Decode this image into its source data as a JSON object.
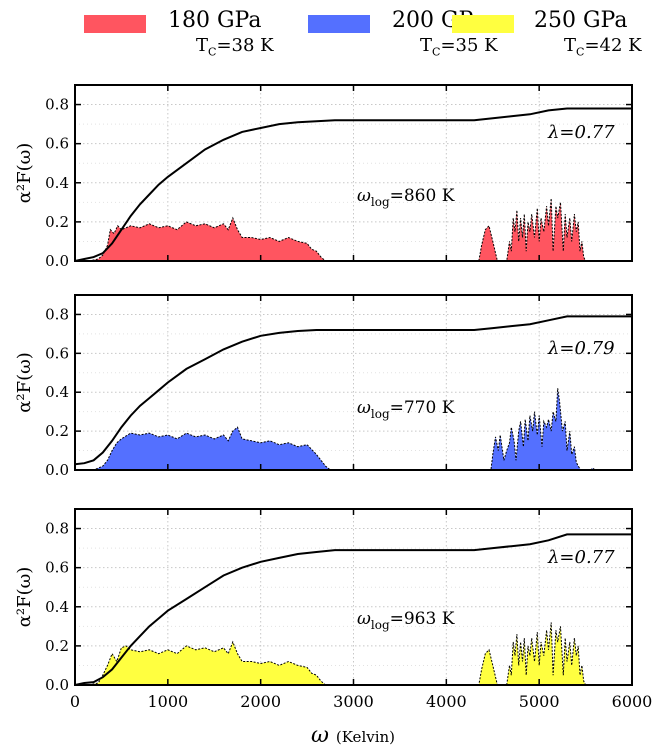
{
  "legend": [
    {
      "label": "180 GPa",
      "tc": "T",
      "tc_sub": "C",
      "tc_val": "=38 K",
      "color": "#ff5560"
    },
    {
      "label": "200 GPa",
      "tc": "T",
      "tc_sub": "C",
      "tc_val": "=35 K",
      "color": "#5470ff"
    },
    {
      "label": "250 GPa",
      "tc": "T",
      "tc_sub": "C",
      "tc_val": "=42 K",
      "color": "#ffff40"
    }
  ],
  "chart_data": [
    {
      "type": "area",
      "pressure": "180 GPa",
      "color": "#ff5560",
      "ylabel": "α²F(ω)",
      "xlim": [
        0,
        6000
      ],
      "ylim": [
        0,
        0.9
      ],
      "xticks": [
        0,
        1000,
        2000,
        3000,
        4000,
        5000,
        6000
      ],
      "yticks": [
        0.0,
        0.2,
        0.4,
        0.6,
        0.8
      ],
      "grid": true,
      "annotation_lambda": "λ=0.77",
      "annotation_omega": {
        "prefix": "ω",
        "sub": "log",
        "value": "=860 K"
      },
      "series": [
        {
          "name": "α²F(ω)",
          "x": [
            0,
            150,
            250,
            300,
            350,
            380,
            420,
            460,
            500,
            600,
            700,
            800,
            900,
            1000,
            1100,
            1200,
            1300,
            1400,
            1500,
            1600,
            1650,
            1700,
            1750,
            1800,
            1900,
            2000,
            2100,
            2200,
            2300,
            2400,
            2500,
            2550,
            2600,
            2650,
            2700,
            4350,
            4380,
            4420,
            4460,
            4500,
            4550,
            4650,
            4680,
            4700,
            4720,
            4740,
            4760,
            4780,
            4800,
            4820,
            4840,
            4860,
            4880,
            4900,
            4920,
            4950,
            4980,
            5000,
            5020,
            5050,
            5080,
            5100,
            5130,
            5150,
            5180,
            5200,
            5230,
            5260,
            5280,
            5300,
            5330,
            5350,
            5380,
            5400,
            5420,
            5440,
            5460,
            5480,
            5500,
            6000
          ],
          "y": [
            0,
            0,
            0.01,
            0.03,
            0.08,
            0.16,
            0.14,
            0.18,
            0.16,
            0.18,
            0.17,
            0.19,
            0.17,
            0.18,
            0.16,
            0.2,
            0.18,
            0.19,
            0.17,
            0.19,
            0.16,
            0.22,
            0.16,
            0.12,
            0.12,
            0.11,
            0.12,
            0.1,
            0.12,
            0.1,
            0.09,
            0.06,
            0.05,
            0.02,
            0,
            0,
            0.08,
            0.16,
            0.18,
            0.1,
            0,
            0,
            0.1,
            0.05,
            0.22,
            0.15,
            0.26,
            0.1,
            0.22,
            0.12,
            0.24,
            0.05,
            0.2,
            0.15,
            0.24,
            0.12,
            0.27,
            0.1,
            0.22,
            0.15,
            0.28,
            0.18,
            0.32,
            0.05,
            0.28,
            0.22,
            0.3,
            0.05,
            0.24,
            0.12,
            0.22,
            0.1,
            0.24,
            0.15,
            0.2,
            0.05,
            0.1,
            0.02,
            0,
            0
          ]
        },
        {
          "name": "λ",
          "x": [
            0,
            100,
            200,
            300,
            400,
            500,
            600,
            700,
            800,
            900,
            1000,
            1200,
            1400,
            1600,
            1800,
            2000,
            2200,
            2400,
            2600,
            2800,
            3000,
            3500,
            4000,
            4300,
            4500,
            4700,
            4900,
            5100,
            5300,
            5400,
            6000
          ],
          "y": [
            0,
            0.01,
            0.02,
            0.04,
            0.09,
            0.16,
            0.23,
            0.29,
            0.34,
            0.39,
            0.43,
            0.5,
            0.57,
            0.62,
            0.66,
            0.68,
            0.7,
            0.71,
            0.715,
            0.72,
            0.72,
            0.72,
            0.72,
            0.72,
            0.73,
            0.74,
            0.75,
            0.77,
            0.78,
            0.78,
            0.78
          ]
        }
      ]
    },
    {
      "type": "area",
      "pressure": "200 GPa",
      "color": "#5470ff",
      "ylabel": "α²F(ω)",
      "xlim": [
        0,
        6000
      ],
      "ylim": [
        0,
        0.9
      ],
      "xticks": [
        0,
        1000,
        2000,
        3000,
        4000,
        5000,
        6000
      ],
      "yticks": [
        0.0,
        0.2,
        0.4,
        0.6,
        0.8
      ],
      "grid": true,
      "annotation_lambda": "λ=0.79",
      "annotation_omega": {
        "prefix": "ω",
        "sub": "log",
        "value": "=770 K"
      },
      "series": [
        {
          "name": "α²F(ω)",
          "x": [
            0,
            200,
            300,
            350,
            400,
            450,
            500,
            600,
            700,
            800,
            900,
            1000,
            1100,
            1200,
            1300,
            1400,
            1500,
            1600,
            1650,
            1700,
            1750,
            1800,
            1900,
            2000,
            2100,
            2200,
            2300,
            2400,
            2500,
            2600,
            2650,
            2700,
            2750,
            4480,
            4500,
            4530,
            4560,
            4580,
            4620,
            4650,
            4680,
            4700,
            4730,
            4750,
            4780,
            4800,
            4830,
            4850,
            4880,
            4900,
            4930,
            4950,
            4980,
            5000,
            5030,
            5050,
            5080,
            5100,
            5130,
            5150,
            5180,
            5200,
            5220,
            5250,
            5280,
            5300,
            5330,
            5350,
            5380,
            5400,
            5420,
            5450,
            5550,
            5580,
            5600,
            6000
          ],
          "y": [
            0,
            0,
            0.02,
            0.05,
            0.1,
            0.14,
            0.16,
            0.19,
            0.18,
            0.19,
            0.17,
            0.18,
            0.16,
            0.19,
            0.17,
            0.18,
            0.16,
            0.18,
            0.15,
            0.2,
            0.22,
            0.16,
            0.15,
            0.14,
            0.15,
            0.13,
            0.14,
            0.12,
            0.13,
            0.08,
            0.05,
            0.02,
            0,
            0,
            0.08,
            0.17,
            0.1,
            0.18,
            0.05,
            0.1,
            0.14,
            0.22,
            0.15,
            0.05,
            0.2,
            0.25,
            0.12,
            0.26,
            0.15,
            0.28,
            0.2,
            0.3,
            0.18,
            0.28,
            0.12,
            0.25,
            0.22,
            0.26,
            0.2,
            0.3,
            0.25,
            0.42,
            0.35,
            0.2,
            0.25,
            0.1,
            0.2,
            0.08,
            0.12,
            0.04,
            0.02,
            0,
            0,
            0.01,
            0,
            0
          ]
        },
        {
          "name": "λ",
          "x": [
            0,
            100,
            200,
            300,
            400,
            500,
            600,
            700,
            800,
            900,
            1000,
            1200,
            1400,
            1600,
            1800,
            2000,
            2200,
            2400,
            2600,
            2800,
            3000,
            3500,
            4000,
            4300,
            4500,
            4700,
            4900,
            5100,
            5300,
            5400,
            6000
          ],
          "y": [
            0.03,
            0.035,
            0.05,
            0.09,
            0.15,
            0.22,
            0.28,
            0.33,
            0.37,
            0.41,
            0.45,
            0.52,
            0.57,
            0.62,
            0.66,
            0.69,
            0.705,
            0.715,
            0.72,
            0.72,
            0.72,
            0.72,
            0.72,
            0.72,
            0.73,
            0.74,
            0.75,
            0.77,
            0.79,
            0.79,
            0.79
          ]
        }
      ]
    },
    {
      "type": "area",
      "pressure": "250 GPa",
      "color": "#ffff40",
      "xlabel": "ω",
      "xlabel_unit": "(Kelvin)",
      "ylabel": "α²F(ω)",
      "xlim": [
        0,
        6000
      ],
      "ylim": [
        0,
        0.9
      ],
      "xticks": [
        0,
        1000,
        2000,
        3000,
        4000,
        5000,
        6000
      ],
      "yticks": [
        0.0,
        0.2,
        0.4,
        0.6,
        0.8
      ],
      "grid": true,
      "annotation_lambda": "λ=0.77",
      "annotation_omega": {
        "prefix": "ω",
        "sub": "log",
        "value": "=963 K"
      },
      "series": [
        {
          "name": "α²F(ω)",
          "x": [
            0,
            150,
            250,
            300,
            350,
            400,
            450,
            500,
            550,
            600,
            700,
            800,
            900,
            1000,
            1100,
            1200,
            1300,
            1400,
            1500,
            1600,
            1650,
            1700,
            1750,
            1800,
            1900,
            2000,
            2100,
            2200,
            2300,
            2400,
            2500,
            2550,
            2600,
            2650,
            2700,
            4350,
            4380,
            4420,
            4460,
            4500,
            4550,
            4650,
            4680,
            4700,
            4720,
            4740,
            4760,
            4780,
            4800,
            4820,
            4840,
            4860,
            4880,
            4900,
            4920,
            4950,
            4980,
            5000,
            5020,
            5050,
            5080,
            5100,
            5130,
            5150,
            5180,
            5200,
            5230,
            5260,
            5280,
            5300,
            5330,
            5350,
            5380,
            5400,
            5420,
            5440,
            5460,
            5480,
            5500,
            6000
          ],
          "y": [
            0,
            0,
            0.01,
            0.05,
            0.1,
            0.16,
            0.12,
            0.19,
            0.2,
            0.18,
            0.17,
            0.18,
            0.16,
            0.18,
            0.16,
            0.2,
            0.18,
            0.19,
            0.17,
            0.19,
            0.16,
            0.22,
            0.16,
            0.12,
            0.12,
            0.11,
            0.12,
            0.1,
            0.12,
            0.1,
            0.09,
            0.06,
            0.05,
            0.02,
            0,
            0,
            0.08,
            0.16,
            0.18,
            0.1,
            0,
            0,
            0.1,
            0.05,
            0.22,
            0.15,
            0.26,
            0.1,
            0.22,
            0.12,
            0.24,
            0.05,
            0.2,
            0.15,
            0.24,
            0.12,
            0.27,
            0.1,
            0.22,
            0.15,
            0.28,
            0.18,
            0.32,
            0.05,
            0.28,
            0.22,
            0.3,
            0.05,
            0.24,
            0.12,
            0.22,
            0.1,
            0.24,
            0.15,
            0.2,
            0.05,
            0.1,
            0.02,
            0,
            0
          ]
        },
        {
          "name": "λ",
          "x": [
            0,
            100,
            200,
            300,
            400,
            500,
            600,
            700,
            800,
            900,
            1000,
            1200,
            1400,
            1600,
            1800,
            2000,
            2200,
            2400,
            2600,
            2800,
            3000,
            3500,
            4000,
            4300,
            4500,
            4700,
            4900,
            5100,
            5300,
            5400,
            6000
          ],
          "y": [
            0,
            0.01,
            0.015,
            0.04,
            0.08,
            0.14,
            0.2,
            0.25,
            0.3,
            0.34,
            0.38,
            0.44,
            0.5,
            0.56,
            0.6,
            0.63,
            0.65,
            0.67,
            0.68,
            0.69,
            0.69,
            0.69,
            0.69,
            0.69,
            0.7,
            0.71,
            0.72,
            0.74,
            0.77,
            0.77,
            0.77
          ]
        }
      ]
    }
  ]
}
